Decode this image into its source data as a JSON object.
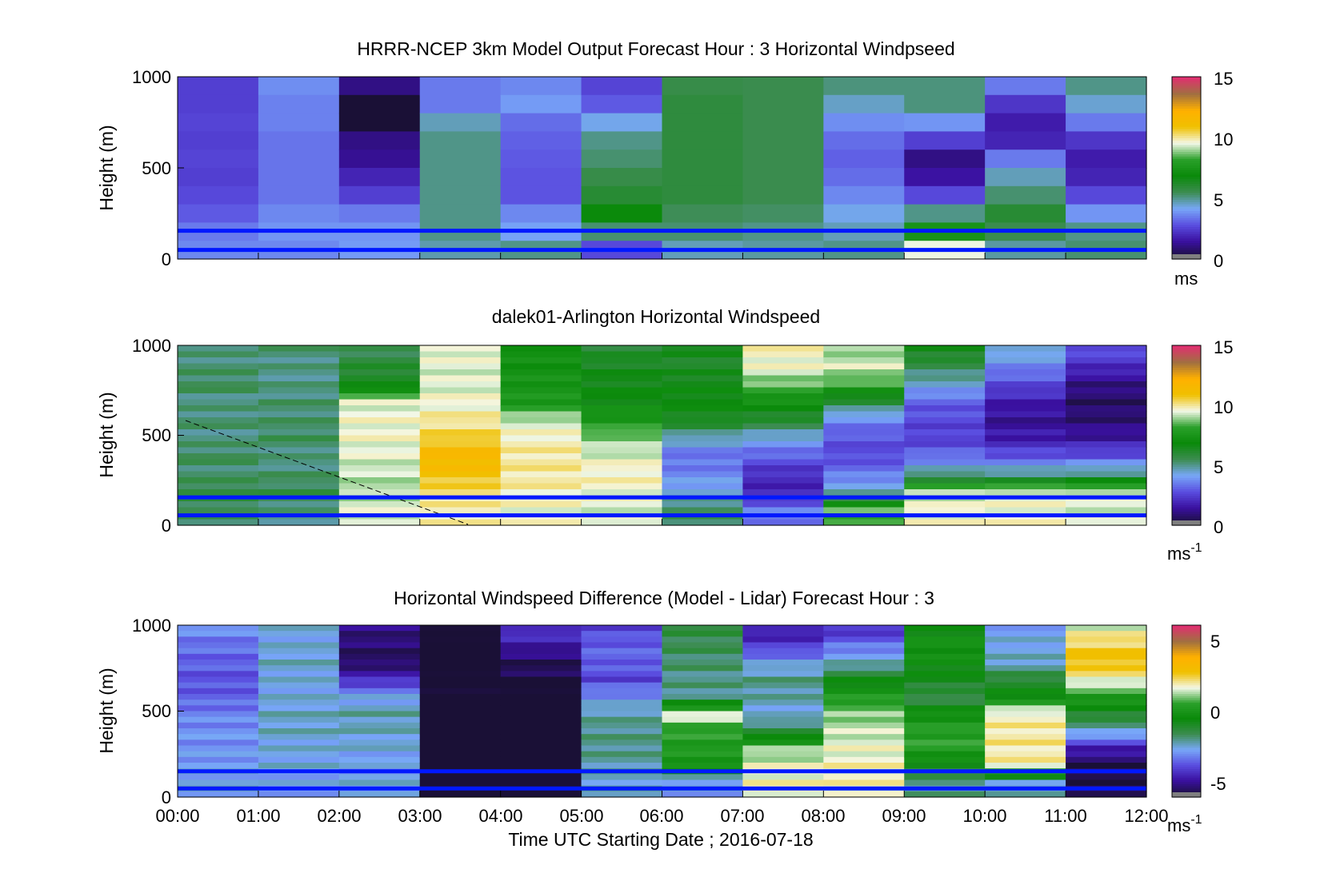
{
  "figure": {
    "xlabel": "Time UTC  Starting Date ; 2016-07-18",
    "xticks": [
      "00:00",
      "01:00",
      "02:00",
      "03:00",
      "04:00",
      "05:00",
      "06:00",
      "07:00",
      "08:00",
      "09:00",
      "10:00",
      "11:00",
      "12:00"
    ]
  },
  "colors": {
    "lowest": "#808080",
    "gradient_stops": [
      "#1a1036",
      "#3a10a0",
      "#5a4ee0",
      "#78a8f8",
      "#3c8c50",
      "#0a8a0a",
      "#2aa02a",
      "#f4f8e8",
      "#f0c000",
      "#ffb000",
      "#a07040",
      "#e03070"
    ],
    "overlay_lines": "#0018ff"
  },
  "chart_data": [
    {
      "type": "heatmap",
      "title": "HRRR-NCEP 3km Model Output   Forecast Hour : 3 Horizontal Windpseed",
      "ylabel": "Height (m)",
      "yticks": [
        "1000",
        "500",
        "0"
      ],
      "ylim": [
        0,
        1000
      ],
      "xlim": [
        "00:00",
        "12:00"
      ],
      "colorbar": {
        "ticks": [
          "15",
          "10",
          "5",
          "0"
        ],
        "unit": "ms",
        "unit_sup": "",
        "range": [
          0,
          15
        ]
      },
      "overlay_lines_m": [
        155,
        50
      ],
      "hours": [
        "00:00",
        "01:00",
        "02:00",
        "03:00",
        "04:00",
        "05:00",
        "06:00",
        "07:00",
        "08:00",
        "09:00",
        "10:00",
        "11:00"
      ],
      "heights_m": [
        1000,
        900,
        800,
        700,
        600,
        500,
        400,
        300,
        200,
        100,
        0
      ],
      "columns": [
        [
          2.4,
          2.4,
          2.5,
          2.4,
          2.5,
          2.4,
          2.6,
          2.9,
          3.4,
          3.6
        ],
        [
          3.7,
          3.5,
          3.5,
          3.3,
          3.3,
          3.3,
          3.3,
          3.6,
          3.8,
          3.6
        ],
        [
          1.0,
          0.0,
          0.0,
          1.0,
          1.2,
          1.8,
          2.4,
          3.4,
          3.8,
          3.9
        ],
        [
          3.4,
          3.4,
          4.6,
          5.0,
          5.0,
          5.0,
          5.0,
          5.0,
          5.0,
          4.7
        ],
        [
          3.6,
          3.9,
          3.2,
          3.0,
          2.9,
          2.8,
          2.8,
          3.6,
          4.0,
          5.0
        ],
        [
          2.5,
          2.9,
          4.2,
          5.0,
          5.2,
          5.6,
          6.0,
          6.8,
          5.2,
          2.6
        ],
        [
          5.6,
          5.8,
          5.8,
          5.8,
          5.8,
          5.8,
          5.8,
          5.4,
          5.2,
          4.6
        ],
        [
          5.5,
          5.5,
          5.5,
          5.5,
          5.5,
          5.5,
          5.5,
          5.3,
          5.0,
          4.8
        ],
        [
          5.1,
          4.5,
          3.7,
          3.2,
          3.0,
          3.2,
          3.6,
          4.2,
          4.6,
          5.0
        ],
        [
          5.1,
          5.1,
          3.8,
          2.4,
          1.0,
          1.4,
          2.6,
          5.0,
          7.4,
          9.5
        ],
        [
          3.4,
          2.2,
          1.6,
          1.8,
          3.4,
          4.6,
          5.2,
          6.0,
          5.5,
          4.8
        ],
        [
          5.0,
          4.4,
          3.4,
          2.2,
          1.6,
          1.8,
          2.6,
          3.8,
          5.0,
          5.2
        ]
      ]
    },
    {
      "type": "heatmap",
      "title": "dalek01-Arlington  Horizontal Windspeed",
      "ylabel": "Height (m)",
      "yticks": [
        "1000",
        "500",
        "0"
      ],
      "ylim": [
        0,
        1000
      ],
      "xlim": [
        "00:00",
        "12:00"
      ],
      "colorbar": {
        "ticks": [
          "15",
          "10",
          "5",
          "0"
        ],
        "unit": "ms",
        "unit_sup": "-1",
        "range": [
          0,
          15
        ]
      },
      "overlay_lines_m": [
        155,
        55
      ],
      "hours": [
        "00:00",
        "01:00",
        "02:00",
        "03:00",
        "04:00",
        "05:00",
        "06:00",
        "07:00",
        "08:00",
        "09:00",
        "10:00",
        "11:00"
      ],
      "heights_m": [
        1000,
        900,
        800,
        700,
        600,
        500,
        400,
        300,
        200,
        100,
        0
      ],
      "columns": [
        [
          5.0,
          5.2,
          5.4,
          5.0,
          5.2,
          5.0,
          5.4,
          5.2,
          5.8,
          5.4
        ],
        [
          5.2,
          5.0,
          5.0,
          5.2,
          5.2,
          5.4,
          5.0,
          5.2,
          5.6,
          5.0
        ],
        [
          5.4,
          6.0,
          6.4,
          9.4,
          9.6,
          9.6,
          9.4,
          9.2,
          9.0,
          9.4
        ],
        [
          9.6,
          9.4,
          9.4,
          9.6,
          10.0,
          10.6,
          11.6,
          11.0,
          10.2,
          9.8
        ],
        [
          7.2,
          7.2,
          7.4,
          7.6,
          9.2,
          9.8,
          10.0,
          10.0,
          9.8,
          9.6
        ],
        [
          6.0,
          6.4,
          6.6,
          6.8,
          7.6,
          8.8,
          9.4,
          9.8,
          9.6,
          9.4
        ],
        [
          6.4,
          6.2,
          6.6,
          6.8,
          6.4,
          4.6,
          3.2,
          3.6,
          4.4,
          5.4
        ],
        [
          9.8,
          9.6,
          8.6,
          7.2,
          6.0,
          4.2,
          3.0,
          2.0,
          1.8,
          3.4
        ],
        [
          8.8,
          9.4,
          8.2,
          5.8,
          3.6,
          2.8,
          2.6,
          3.4,
          4.6,
          8.4
        ],
        [
          6.6,
          5.6,
          4.4,
          3.0,
          2.6,
          2.4,
          3.2,
          5.0,
          9.2,
          9.6
        ],
        [
          4.6,
          3.6,
          2.6,
          1.6,
          1.2,
          1.6,
          2.8,
          5.0,
          9.4,
          9.6
        ],
        [
          2.8,
          2.0,
          1.0,
          0.6,
          0.8,
          1.4,
          2.8,
          5.2,
          9.4,
          9.4
        ]
      ]
    },
    {
      "type": "heatmap",
      "title": "Horizontal Windspeed Difference (Model - Lidar) Forecast Hour : 3",
      "ylabel": "Height (m)",
      "yticks": [
        "1000",
        "500",
        "0"
      ],
      "ylim": [
        0,
        1000
      ],
      "xlim": [
        "00:00",
        "12:00"
      ],
      "colorbar": {
        "ticks": [
          "5",
          "0",
          "-5"
        ],
        "unit": "ms",
        "unit_sup": "-1",
        "range": [
          -6,
          6
        ]
      },
      "overlay_lines_m": [
        150,
        50
      ],
      "hours": [
        "00:00",
        "01:00",
        "02:00",
        "03:00",
        "04:00",
        "05:00",
        "06:00",
        "07:00",
        "08:00",
        "09:00",
        "10:00",
        "11:00"
      ],
      "heights_m": [
        1000,
        900,
        800,
        700,
        600,
        500,
        400,
        300,
        200,
        100,
        0
      ],
      "columns": [
        [
          -3.0,
          -3.4,
          -3.6,
          -3.8,
          -3.6,
          -3.2,
          -3.0,
          -3.0,
          -2.8,
          -2.6
        ],
        [
          -2.6,
          -2.6,
          -2.4,
          -2.6,
          -2.6,
          -2.4,
          -2.4,
          -2.6,
          -2.6,
          -2.8
        ],
        [
          -5.2,
          -5.4,
          -5.6,
          -4.4,
          -2.8,
          -2.2,
          -2.4,
          -2.6,
          -2.8,
          -2.6
        ],
        [
          -6.0,
          -6.4,
          -6.4,
          -6.2,
          -6.2,
          -6.4,
          -6.4,
          -6.4,
          -6.4,
          -6.6
        ],
        [
          -4.2,
          -4.8,
          -5.6,
          -5.8,
          -6.5,
          -6.5,
          -6.5,
          -6.5,
          -6.5,
          -6.5
        ],
        [
          -4.0,
          -3.6,
          -3.6,
          -4.0,
          -3.0,
          -2.2,
          -2.0,
          -2.0,
          -2.2,
          -2.4
        ],
        [
          -1.4,
          -1.6,
          -1.8,
          -2.0,
          -2.0,
          1.6,
          0.4,
          0.2,
          0.0,
          -2.8
        ],
        [
          -4.8,
          -4.2,
          -2.8,
          -2.0,
          -2.2,
          -2.6,
          -1.4,
          1.0,
          1.6,
          1.8
        ],
        [
          -4.4,
          -3.4,
          -2.4,
          -0.8,
          0.2,
          1.0,
          1.4,
          1.6,
          1.8,
          1.8
        ],
        [
          -0.6,
          -0.2,
          -0.4,
          -0.8,
          -1.6,
          -0.2,
          0.4,
          0.4,
          -0.8,
          -2.0
        ],
        [
          -2.8,
          -2.6,
          -2.4,
          -1.2,
          -0.4,
          1.8,
          2.0,
          2.0,
          1.8,
          -2.4
        ],
        [
          1.6,
          2.4,
          2.8,
          1.8,
          0.2,
          -1.0,
          -2.4,
          -4.6,
          -5.8,
          -5.8
        ]
      ]
    }
  ]
}
